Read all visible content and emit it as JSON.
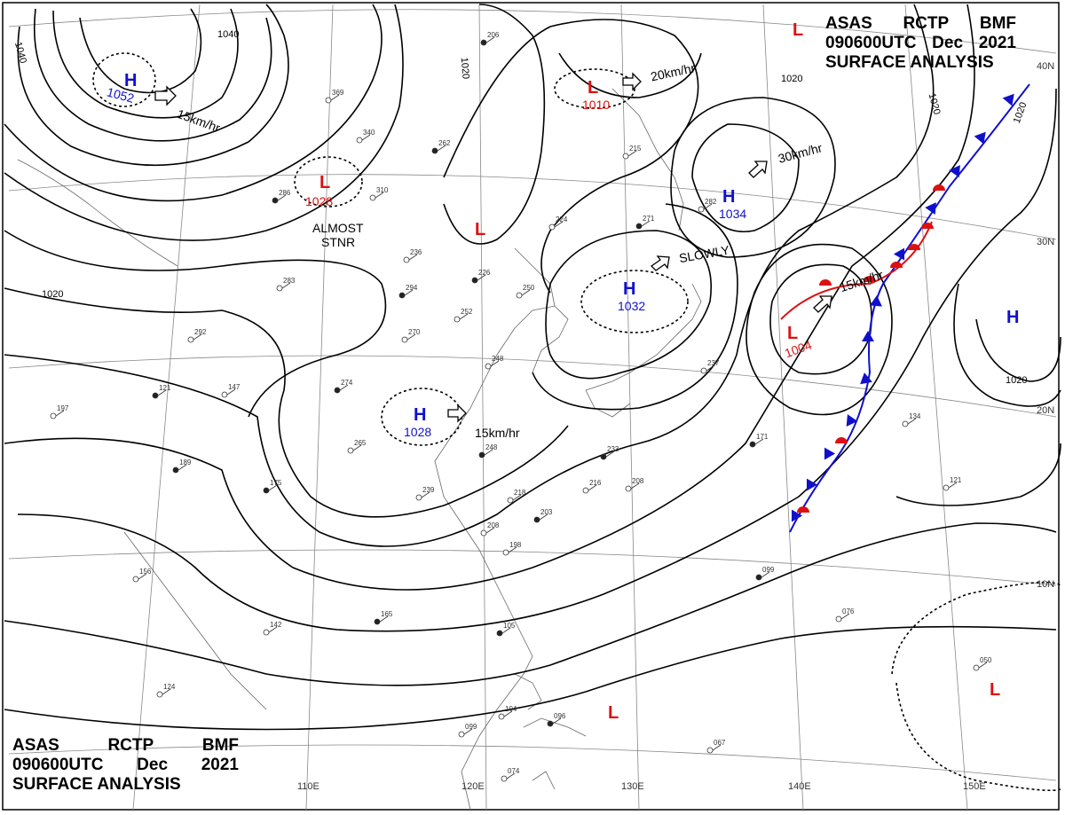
{
  "header": {
    "line1": [
      "ASAS",
      "RCTP",
      "BMF"
    ],
    "line2": [
      "090600UTC",
      "Dec",
      "2021"
    ],
    "line3": "SURFACE ANALYSIS"
  },
  "colors": {
    "high": "#1010cc",
    "low": "#dd1010",
    "warm_front": "#dd1010",
    "cold_front": "#1010cc",
    "isobar": "#000000",
    "coast": "#666666",
    "grid": "#888888"
  },
  "longitude_labels": [
    "110E",
    "120E",
    "130E",
    "140E",
    "150E"
  ],
  "latitude_labels": [
    "40N",
    "30N",
    "20N",
    "10N"
  ],
  "isobar_labels": [
    "1040",
    "1040",
    "1020",
    "1020",
    "1020",
    "1020",
    "1020",
    "1020"
  ],
  "pressure_centers": [
    {
      "type": "H",
      "value": "1052"
    },
    {
      "type": "L",
      "value": "1028"
    },
    {
      "type": "L",
      "value": ""
    },
    {
      "type": "L",
      "value": "1010"
    },
    {
      "type": "H",
      "value": "1034"
    },
    {
      "type": "H",
      "value": "1032"
    },
    {
      "type": "H",
      "value": "1028"
    },
    {
      "type": "L",
      "value": "1004"
    },
    {
      "type": "H",
      "value": ""
    },
    {
      "type": "L",
      "value": ""
    },
    {
      "type": "L",
      "value": ""
    },
    {
      "type": "L",
      "value": ""
    }
  ],
  "motion_labels": [
    "15km/hr",
    "20km/hr",
    "30km/hr",
    "SLOWLY",
    "15km/hr",
    "15km/hr",
    "ALMOST",
    "STNR"
  ],
  "station_values": [
    "206",
    "369",
    "340",
    "286",
    "310",
    "236",
    "226",
    "250",
    "270",
    "274",
    "248",
    "265",
    "175",
    "239",
    "218",
    "203",
    "208",
    "198",
    "165",
    "142",
    "156",
    "189",
    "147",
    "124",
    "105",
    "104",
    "099",
    "096",
    "074",
    "067",
    "271",
    "282",
    "237",
    "171",
    "134",
    "121",
    "099",
    "076",
    "050",
    "233",
    "216",
    "208",
    "262",
    "252",
    "197",
    "121",
    "292",
    "283",
    "294",
    "215",
    "224",
    "248"
  ]
}
